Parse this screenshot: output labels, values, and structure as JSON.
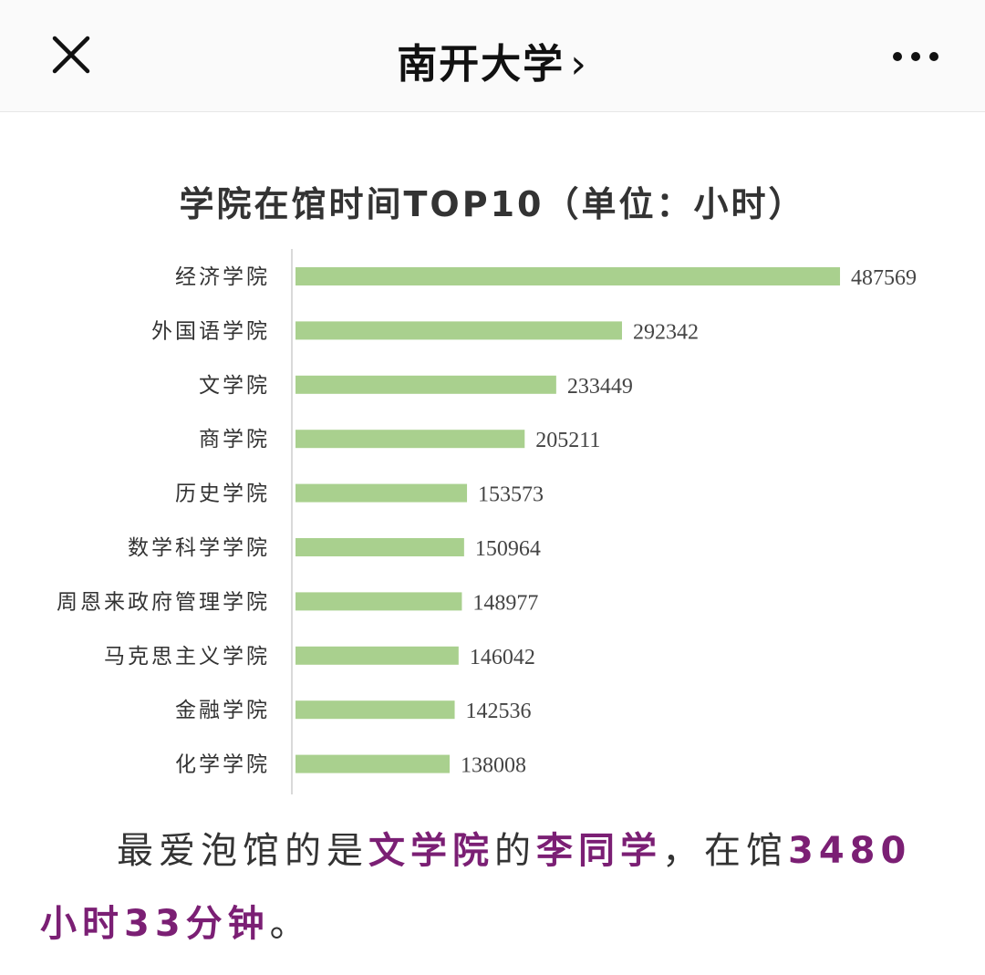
{
  "nav": {
    "title": "南开大学",
    "chevron": "›",
    "close_icon": "close-icon",
    "more_icon": "more-icon"
  },
  "chart_data": {
    "type": "bar",
    "orientation": "horizontal",
    "title": "学院在馆时间TOP10（单位：小时）",
    "categories": [
      "经济学院",
      "外国语学院",
      "文学院",
      "商学院",
      "历史学院",
      "数学科学学院",
      "周恩来政府管理学院",
      "马克思主义学院",
      "金融学院",
      "化学学院"
    ],
    "values": [
      487569,
      292342,
      233449,
      205211,
      153573,
      150964,
      148977,
      146042,
      142536,
      138008
    ],
    "xlim": [
      0,
      490000
    ],
    "bar_color": "#a9d08e",
    "grid": false,
    "legend": false
  },
  "caption": {
    "part1": "最爱泡馆的是",
    "college": "文学院",
    "part2": "的",
    "student": "李同学",
    "part3": "，在馆",
    "hours": "3480",
    "hours_unit": "小时",
    "minutes": "33",
    "minutes_unit": "分钟",
    "end": "。",
    "highlight_color": "#7b1f74"
  }
}
